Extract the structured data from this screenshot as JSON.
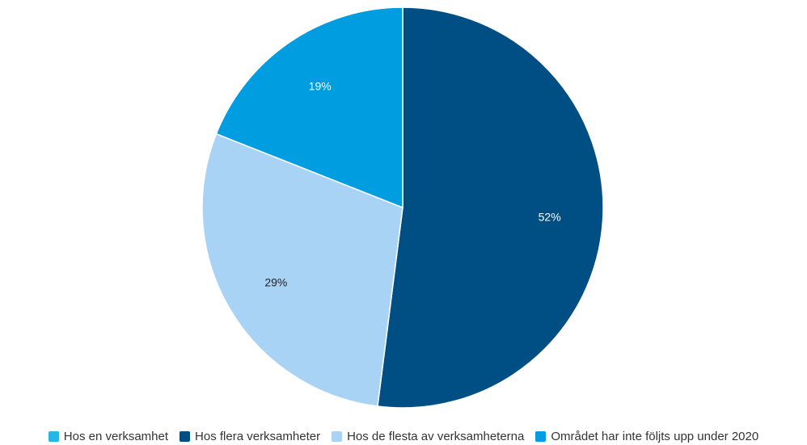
{
  "chart_data": {
    "type": "pie",
    "title": "",
    "start_angle_deg": 0,
    "direction": "clockwise",
    "categories": [
      "Hos en verksamhet",
      "Hos flera verksamheter",
      "Hos de flesta av verksamheterna",
      "Området har inte följts upp under 2020"
    ],
    "values": [
      0,
      52,
      29,
      19
    ],
    "data_labels": [
      "",
      "52%",
      "29%",
      "19%"
    ],
    "colors": [
      "#25b7e6",
      "#004f84",
      "#a9d3f5",
      "#009ee0"
    ],
    "label_colors": [
      "#ffffff",
      "#ffffff",
      "#222222",
      "#ffffff"
    ],
    "legend_position": "bottom"
  }
}
